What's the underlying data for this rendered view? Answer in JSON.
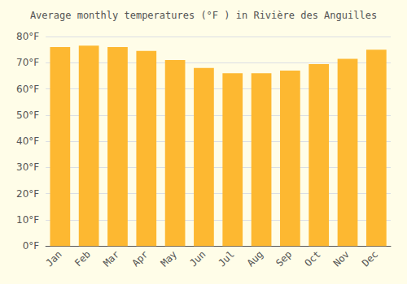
{
  "chart_data": {
    "type": "bar",
    "title": "Average monthly temperatures (°F ) in Rivière des Anguilles",
    "categories": [
      "Jan",
      "Feb",
      "Mar",
      "Apr",
      "May",
      "Jun",
      "Jul",
      "Aug",
      "Sep",
      "Oct",
      "Nov",
      "Dec"
    ],
    "values": [
      76,
      76.5,
      76,
      74.5,
      71,
      68,
      66,
      66,
      67,
      69.5,
      71.5,
      75
    ],
    "color": "#FDB831",
    "ylim": [
      0,
      80
    ],
    "yticks": [
      {
        "value": 0,
        "label": "0°F"
      },
      {
        "value": 10,
        "label": "10°F"
      },
      {
        "value": 20,
        "label": "20°F"
      },
      {
        "value": 30,
        "label": "30°F"
      },
      {
        "value": 40,
        "label": "40°F"
      },
      {
        "value": 50,
        "label": "50°F"
      },
      {
        "value": 60,
        "label": "60°F"
      },
      {
        "value": 70,
        "label": "70°F"
      },
      {
        "value": 80,
        "label": "80°F"
      }
    ],
    "grid": true
  }
}
